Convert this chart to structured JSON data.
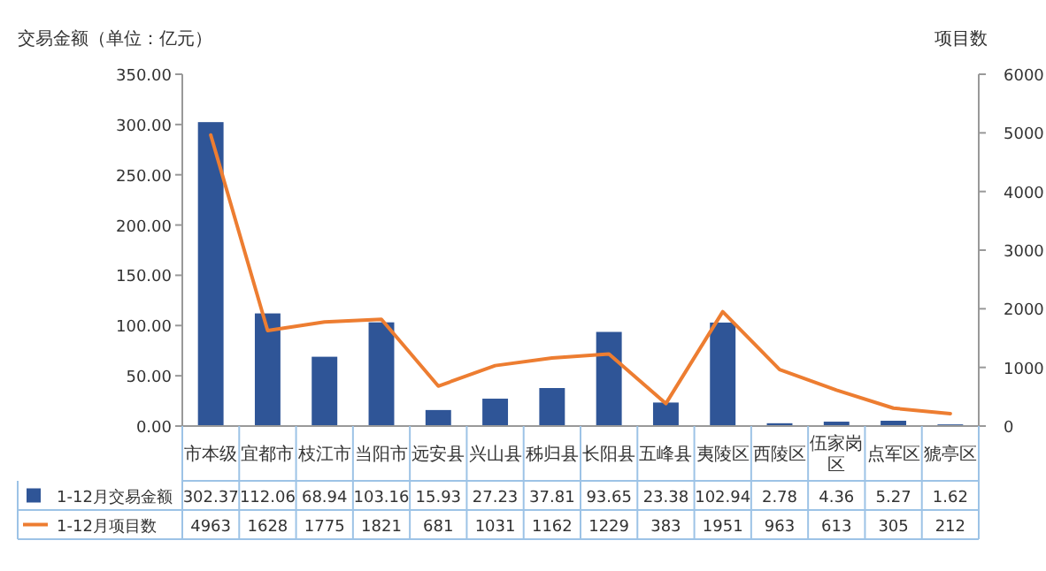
{
  "chart_data": {
    "type": "bar",
    "ylabel": "交易金额（单位：亿元）",
    "y2label": "项目数",
    "categories": [
      "市本级",
      "宜都市",
      "枝江市",
      "当阳市",
      "远安县",
      "兴山县",
      "秭归县",
      "长阳县",
      "五峰县",
      "夷陵区",
      "西陵区",
      "伍家岗区",
      "点军区",
      "猇亭区"
    ],
    "series": [
      {
        "name": "1-12月交易金额",
        "color": "#2f5597",
        "values": [
          302.37,
          112.06,
          68.94,
          103.16,
          15.93,
          27.23,
          37.81,
          93.65,
          23.38,
          102.94,
          2.78,
          4.36,
          5.27,
          1.62
        ]
      },
      {
        "name": "1-12月项目数",
        "type": "line",
        "axis": "y2",
        "color": "#ed7d31",
        "values": [
          4963,
          1628,
          1775,
          1821,
          681,
          1031,
          1162,
          1229,
          383,
          1951,
          963,
          613,
          305,
          212
        ]
      }
    ],
    "ylim": [
      0,
      350
    ],
    "yticks": [
      {
        "value": 0,
        "label": "0.00"
      },
      {
        "value": 50,
        "label": "50.00"
      },
      {
        "value": 100,
        "label": "100.00"
      },
      {
        "value": 150,
        "label": "150.00"
      },
      {
        "value": 200,
        "label": "200.00"
      },
      {
        "value": 250,
        "label": "250.00"
      },
      {
        "value": 300,
        "label": "300.00"
      },
      {
        "value": 350,
        "label": "350.00"
      }
    ],
    "y2lim": [
      0,
      6000
    ],
    "y2ticks": [
      0,
      1000,
      2000,
      3000,
      4000,
      5000,
      6000
    ],
    "data_labels": true,
    "legend": "bottom"
  }
}
